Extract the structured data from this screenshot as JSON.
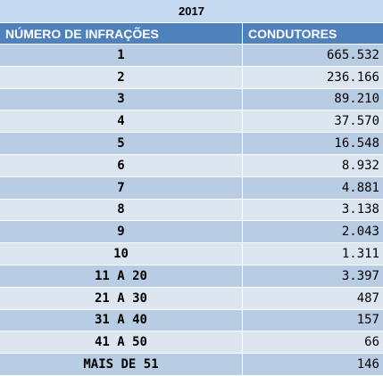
{
  "table": {
    "year_title": "2017",
    "headers": [
      "NÚMERO DE INFRAÇÕES",
      "CONDUTORES"
    ],
    "rows": [
      {
        "infracoes": "1",
        "condutores": "665.532"
      },
      {
        "infracoes": "2",
        "condutores": "236.166"
      },
      {
        "infracoes": "3",
        "condutores": "89.210"
      },
      {
        "infracoes": "4",
        "condutores": "37.570"
      },
      {
        "infracoes": "5",
        "condutores": "16.548"
      },
      {
        "infracoes": "6",
        "condutores": "8.932"
      },
      {
        "infracoes": "7",
        "condutores": "4.881"
      },
      {
        "infracoes": "8",
        "condutores": "3.138"
      },
      {
        "infracoes": "9",
        "condutores": "2.043"
      },
      {
        "infracoes": "10",
        "condutores": "1.311"
      },
      {
        "infracoes": "11 A 20",
        "condutores": "3.397"
      },
      {
        "infracoes": "21 A 30",
        "condutores": "487"
      },
      {
        "infracoes": "31 A 40",
        "condutores": "157"
      },
      {
        "infracoes": "41 A 50",
        "condutores": "66"
      },
      {
        "infracoes": "MAIS DE 51",
        "condutores": "146"
      }
    ]
  },
  "colors": {
    "title_bg": "#c5d9f1",
    "header_bg": "#4f81bd",
    "row_dark": "#b8cce4",
    "row_light": "#dce6f1"
  }
}
